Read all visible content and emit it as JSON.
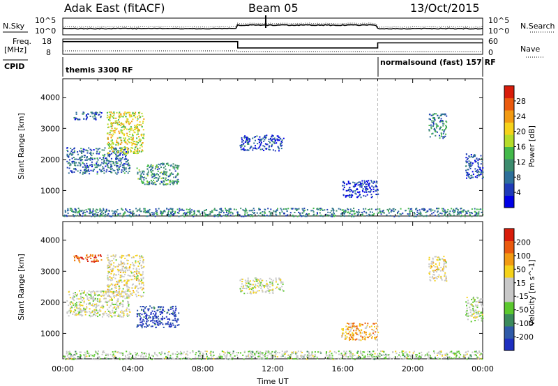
{
  "header": {
    "title": "Adak East (fitACF)",
    "beam": "Beam 05",
    "date": "13/Oct/2015"
  },
  "status_panels": {
    "nsky_label": "N.Sky",
    "nsearch_label": "N.Search",
    "nsky_ticks": [
      "10^5",
      "10^0"
    ],
    "freq_label": "Freq.",
    "freq_unit": "[MHz]",
    "freq_ticks": [
      "18",
      "8"
    ],
    "nave_label": "Nave",
    "nave_ticks": [
      "60",
      "0"
    ],
    "cpid_label": "CPID",
    "cpid_segments": [
      {
        "label": "themis 3300 RF",
        "start_hr": 0,
        "end_hr": 18
      },
      {
        "label": "normalsound (fast) 157 RF",
        "start_hr": 18,
        "end_hr": 24
      }
    ],
    "freq_trace": [
      {
        "start_hr": 0,
        "end_hr": 10,
        "mhz": 16
      },
      {
        "start_hr": 10,
        "end_hr": 18,
        "mhz": 11
      },
      {
        "start_hr": 18,
        "end_hr": 24,
        "mhz": 15
      }
    ]
  },
  "chart_data": [
    {
      "type": "heatmap",
      "quantity": "Power",
      "ylabel": "Slant Range [km]",
      "ylim": [
        180,
        4600
      ],
      "yticks": [
        1000,
        2000,
        3000,
        4000
      ],
      "xlim": [
        0,
        24
      ],
      "colorbar": {
        "label": "Power [dB]",
        "range": [
          0,
          32
        ],
        "ticks": [
          "4",
          "8",
          "12",
          "16",
          "20",
          "24",
          "28"
        ],
        "colors": [
          "#0000e6",
          "#1f3bb8",
          "#2e6f9a",
          "#3d8c6e",
          "#43b94a",
          "#b5dc2a",
          "#f5d21a",
          "#f29a12",
          "#ea5a0e",
          "#d81c0a"
        ]
      },
      "regions": [
        {
          "t0": 0.2,
          "t1": 3.8,
          "r0": 1550,
          "r1": 2400,
          "level": 0.25
        },
        {
          "t0": 2.5,
          "t1": 4.6,
          "r0": 2200,
          "r1": 3550,
          "level": 0.6
        },
        {
          "t0": 0.6,
          "t1": 2.2,
          "r0": 3300,
          "r1": 3550,
          "level": 0.2
        },
        {
          "t0": 4.2,
          "t1": 6.6,
          "r0": 1200,
          "r1": 1900,
          "level": 0.35
        },
        {
          "t0": 10.1,
          "t1": 12.6,
          "r0": 2300,
          "r1": 2800,
          "level": 0.15
        },
        {
          "t0": 15.9,
          "t1": 18.0,
          "r0": 800,
          "r1": 1350,
          "level": 0.12
        },
        {
          "t0": 20.9,
          "t1": 21.9,
          "r0": 2700,
          "r1": 3500,
          "level": 0.3
        },
        {
          "t0": 23.0,
          "t1": 24.0,
          "r0": 1400,
          "r1": 2200,
          "level": 0.2
        },
        {
          "t0": 0.0,
          "t1": 24.0,
          "r0": 180,
          "r1": 450,
          "level": 0.3
        }
      ]
    },
    {
      "type": "heatmap",
      "quantity": "Velocity",
      "ylabel": "Slant Range [km]",
      "xlabel": "Time UT",
      "ylim": [
        180,
        4600
      ],
      "yticks": [
        1000,
        2000,
        3000,
        4000
      ],
      "xlim": [
        0,
        24
      ],
      "xticks": [
        "00:00",
        "04:00",
        "08:00",
        "12:00",
        "16:00",
        "20:00",
        "00:00"
      ],
      "colorbar": {
        "label": "Velocity [m s^-1]",
        "range": [
          -250,
          250
        ],
        "ticks": [
          "200",
          "100",
          "50",
          "15",
          "-15",
          "-50",
          "-100",
          "-200"
        ],
        "colors": [
          "#1e2fc0",
          "#2f5aa8",
          "#3b8a5c",
          "#5bc82e",
          "#c8c8c8",
          "#c8c8c8",
          "#f5d21a",
          "#f29a12",
          "#ea5a0e",
          "#d81c0a"
        ]
      },
      "regions": [
        {
          "t0": 0.2,
          "t1": 3.8,
          "r0": 1550,
          "r1": 2400,
          "level": 0.5
        },
        {
          "t0": 2.5,
          "t1": 4.6,
          "r0": 2200,
          "r1": 3550,
          "level": 0.55
        },
        {
          "t0": 0.6,
          "t1": 2.2,
          "r0": 3300,
          "r1": 3550,
          "level": 0.9
        },
        {
          "t0": 4.2,
          "t1": 6.6,
          "r0": 1200,
          "r1": 1900,
          "level": 0.05
        },
        {
          "t0": 10.1,
          "t1": 12.6,
          "r0": 2300,
          "r1": 2800,
          "level": 0.5
        },
        {
          "t0": 15.9,
          "t1": 18.0,
          "r0": 800,
          "r1": 1350,
          "level": 0.7
        },
        {
          "t0": 20.9,
          "t1": 21.9,
          "r0": 2700,
          "r1": 3500,
          "level": 0.55
        },
        {
          "t0": 23.0,
          "t1": 24.0,
          "r0": 1400,
          "r1": 2200,
          "level": 0.5
        },
        {
          "t0": 0.0,
          "t1": 24.0,
          "r0": 180,
          "r1": 450,
          "level": 0.45
        }
      ]
    }
  ]
}
